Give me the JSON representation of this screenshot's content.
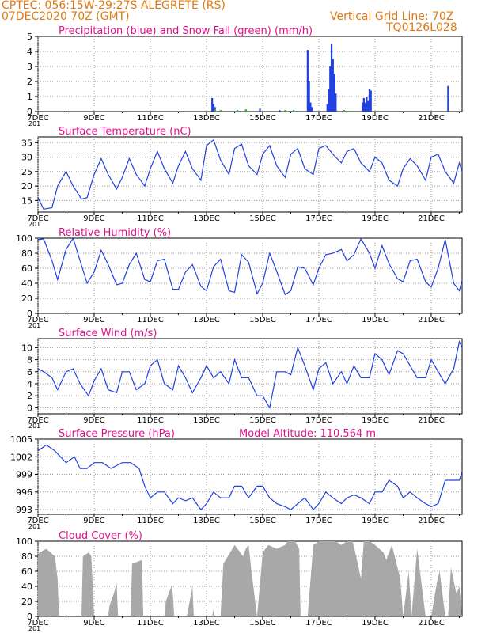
{
  "header": {
    "station": "CPTEC:   056:15W-29:27S   ALEGRETE (RS)",
    "run": "07DEC2020 70Z (GMT)",
    "grid_note": "Vertical Grid Line: 70Z",
    "code": "TQ0126L028"
  },
  "colors": {
    "header": "#e07a10",
    "title": "#e0108c",
    "line": "#2040e0",
    "snow": "#20b020",
    "cloud": "#a8a8a8"
  },
  "x_axis": {
    "tick_labels": [
      "7DEC",
      "9DEC",
      "11DEC",
      "13DEC",
      "15DEC",
      "17DEC",
      "19DEC",
      "21DEC"
    ],
    "tick_days": [
      7,
      9,
      11,
      13,
      15,
      17,
      19,
      21
    ],
    "xlim": [
      7,
      22.1
    ],
    "stub_label": "201"
  },
  "chart_data": [
    {
      "id": "precip",
      "type": "bar",
      "title": "Precipitation (blue) and Snow Fall (green) (mm/h)",
      "ylim": [
        0,
        5
      ],
      "yticks": [
        0,
        1,
        2,
        3,
        4,
        5
      ],
      "grid": true,
      "rain": [
        [
          13.2,
          0.9
        ],
        [
          13.25,
          0.5
        ],
        [
          13.3,
          0.3
        ],
        [
          14.9,
          0.2
        ],
        [
          15.6,
          0.1
        ],
        [
          16.6,
          4.1
        ],
        [
          16.65,
          2.0
        ],
        [
          16.7,
          0.6
        ],
        [
          16.75,
          0.3
        ],
        [
          17.3,
          0.5
        ],
        [
          17.35,
          1.5
        ],
        [
          17.4,
          3.0
        ],
        [
          17.45,
          4.5
        ],
        [
          17.5,
          3.5
        ],
        [
          17.55,
          2.5
        ],
        [
          17.6,
          1.2
        ],
        [
          18.55,
          0.6
        ],
        [
          18.6,
          0.9
        ],
        [
          18.65,
          0.6
        ],
        [
          18.7,
          1.0
        ],
        [
          18.75,
          0.7
        ],
        [
          18.8,
          1.5
        ],
        [
          18.85,
          1.4
        ],
        [
          21.6,
          1.7
        ]
      ],
      "snow": [
        [
          13.3,
          0.15
        ],
        [
          13.5,
          0.1
        ],
        [
          14.1,
          0.1
        ],
        [
          14.4,
          0.15
        ],
        [
          15.8,
          0.1
        ],
        [
          16.1,
          0.1
        ],
        [
          17.9,
          0.1
        ],
        [
          18.2,
          0.05
        ]
      ]
    },
    {
      "id": "temp",
      "type": "line",
      "title": "Surface Temperature (nC)",
      "ylim": [
        11,
        37
      ],
      "yticks": [
        15,
        20,
        25,
        30,
        35
      ],
      "grid": true,
      "x": [
        7,
        7.2,
        7.5,
        7.7,
        8,
        8.25,
        8.55,
        8.75,
        9,
        9.25,
        9.5,
        9.8,
        10,
        10.25,
        10.5,
        10.8,
        11,
        11.25,
        11.5,
        11.8,
        12,
        12.25,
        12.5,
        12.8,
        13,
        13.25,
        13.5,
        13.8,
        14,
        14.25,
        14.5,
        14.8,
        15,
        15.25,
        15.5,
        15.8,
        16,
        16.25,
        16.5,
        16.8,
        17,
        17.25,
        17.5,
        17.8,
        18,
        18.25,
        18.5,
        18.8,
        19,
        19.25,
        19.5,
        19.8,
        20,
        20.25,
        20.5,
        20.8,
        21,
        21.25,
        21.5,
        21.8,
        22,
        22.1
      ],
      "values": [
        16,
        12,
        12.5,
        20,
        25,
        20,
        15.5,
        16,
        24,
        29.5,
        24,
        19,
        23,
        29.5,
        24,
        20,
        26,
        32,
        26,
        21,
        27,
        32,
        26,
        22,
        34,
        36,
        29,
        24,
        33,
        34.5,
        27,
        24,
        31,
        34,
        27,
        23,
        31,
        33,
        26,
        24,
        33,
        34,
        31,
        28,
        32,
        33,
        28,
        25,
        30,
        28,
        22,
        20,
        26,
        29.5,
        27,
        22,
        30,
        31,
        25,
        21,
        28,
        25
      ]
    },
    {
      "id": "rh",
      "type": "line",
      "title": "Relative Humidity (%)",
      "ylim": [
        0,
        100
      ],
      "yticks": [
        0,
        20,
        40,
        60,
        80,
        100
      ],
      "grid": true,
      "x": [
        7,
        7.2,
        7.5,
        7.7,
        8,
        8.25,
        8.5,
        8.75,
        9,
        9.25,
        9.5,
        9.8,
        10,
        10.25,
        10.5,
        10.8,
        11,
        11.25,
        11.5,
        11.8,
        12,
        12.25,
        12.5,
        12.8,
        13,
        13.25,
        13.5,
        13.8,
        14,
        14.25,
        14.5,
        14.8,
        15,
        15.25,
        15.5,
        15.8,
        16,
        16.25,
        16.5,
        16.8,
        17,
        17.25,
        17.5,
        17.8,
        18,
        18.25,
        18.5,
        18.8,
        19,
        19.25,
        19.5,
        19.8,
        20,
        20.25,
        20.5,
        20.8,
        21,
        21.25,
        21.5,
        21.8,
        22,
        22.1
      ],
      "values": [
        98,
        99,
        70,
        45,
        85,
        100,
        70,
        40,
        55,
        84,
        65,
        38,
        40,
        65,
        80,
        45,
        42,
        70,
        72,
        32,
        32,
        55,
        65,
        36,
        30,
        62,
        72,
        30,
        28,
        78,
        68,
        26,
        40,
        80,
        56,
        25,
        30,
        62,
        60,
        38,
        60,
        78,
        80,
        85,
        70,
        78,
        99,
        80,
        60,
        90,
        66,
        46,
        42,
        70,
        72,
        42,
        35,
        60,
        98,
        40,
        30,
        44
      ]
    },
    {
      "id": "wind",
      "type": "line",
      "title": "Surface Wind (m/s)",
      "ylim": [
        -1,
        11.5
      ],
      "yticks": [
        0,
        2,
        4,
        6,
        8,
        10
      ],
      "grid": true,
      "x": [
        7,
        7.2,
        7.5,
        7.7,
        8,
        8.25,
        8.5,
        8.8,
        9,
        9.25,
        9.5,
        9.8,
        10,
        10.25,
        10.5,
        10.8,
        11,
        11.25,
        11.5,
        11.8,
        12,
        12.25,
        12.5,
        12.8,
        13,
        13.25,
        13.5,
        13.8,
        14,
        14.25,
        14.5,
        14.8,
        15,
        15.25,
        15.5,
        15.8,
        16,
        16.25,
        16.5,
        16.8,
        17,
        17.25,
        17.5,
        17.8,
        18,
        18.25,
        18.5,
        18.8,
        19,
        19.25,
        19.5,
        19.8,
        20,
        20.25,
        20.5,
        20.8,
        21,
        21.25,
        21.5,
        21.8,
        22,
        22.1
      ],
      "values": [
        6.5,
        6,
        5,
        3,
        6,
        6.5,
        4,
        2,
        4.5,
        6.5,
        3,
        2.5,
        6,
        6,
        3,
        4,
        7,
        8,
        4,
        3,
        7,
        5,
        2.5,
        5,
        7,
        5,
        6,
        4,
        8,
        5,
        5,
        2,
        2,
        0,
        6,
        6,
        5.5,
        10,
        7,
        3,
        6.5,
        7.5,
        4,
        6,
        4,
        7,
        5,
        5,
        9,
        8,
        5.5,
        9.5,
        9,
        7,
        5,
        5,
        8,
        6,
        4,
        6.5,
        11,
        10
      ]
    },
    {
      "id": "pressure",
      "type": "line",
      "title": "Surface Pressure (hPa)",
      "annotation": "Model Altitude: 110.564  m",
      "ylim": [
        992.2,
        1005
      ],
      "yticks": [
        993,
        996,
        999,
        1002,
        1005
      ],
      "grid": true,
      "x": [
        7,
        7.3,
        7.6,
        8,
        8.3,
        8.5,
        8.75,
        9,
        9.3,
        9.6,
        10,
        10.3,
        10.6,
        10.8,
        11,
        11.25,
        11.5,
        11.8,
        12,
        12.25,
        12.5,
        12.8,
        13,
        13.25,
        13.5,
        13.8,
        14,
        14.25,
        14.5,
        14.8,
        15,
        15.25,
        15.5,
        15.8,
        16,
        16.25,
        16.5,
        16.8,
        17,
        17.25,
        17.5,
        17.8,
        18,
        18.25,
        18.5,
        18.8,
        19,
        19.25,
        19.5,
        19.8,
        20,
        20.25,
        20.5,
        20.8,
        21,
        21.25,
        21.5,
        21.8,
        22,
        22.1
      ],
      "values": [
        1003,
        1004,
        1003,
        1001,
        1002,
        1000,
        1000,
        1001,
        1001,
        1000,
        1001,
        1001,
        1000,
        997,
        995,
        996,
        996,
        994,
        995,
        994.5,
        995,
        993,
        994,
        996,
        995,
        995,
        997,
        997,
        995,
        997,
        997,
        995,
        994,
        993.5,
        993,
        994,
        995,
        993,
        994,
        996,
        995,
        994,
        995,
        995.5,
        995,
        994,
        996,
        996,
        998,
        997,
        995,
        996,
        995,
        994,
        993.5,
        994,
        998,
        998,
        998,
        999.5
      ]
    },
    {
      "id": "cloud",
      "type": "area",
      "title": "Cloud Cover (%)",
      "ylim": [
        0,
        100
      ],
      "yticks": [
        0,
        20,
        40,
        60,
        80,
        100
      ],
      "grid": true,
      "x": [
        7,
        7.05,
        7.3,
        7.6,
        7.7,
        7.75,
        8,
        8.55,
        8.6,
        8.8,
        8.9,
        9,
        9.5,
        9.55,
        9.7,
        9.8,
        9.85,
        10,
        10.3,
        10.35,
        10.7,
        10.75,
        11,
        11.5,
        11.55,
        11.75,
        11.8,
        11.85,
        12,
        12.3,
        12.35,
        12.5,
        12.55,
        12.8,
        13,
        13.2,
        13.25,
        13.3,
        13.5,
        13.6,
        14.0,
        14.3,
        14.4,
        14.5,
        14.6,
        14.8,
        15,
        15.2,
        15.5,
        15.8,
        15.9,
        16,
        16.15,
        16.3,
        16.35,
        16.6,
        16.8,
        17.0,
        17.2,
        17.4,
        17.6,
        17.8,
        18.0,
        18.2,
        18.3,
        18.5,
        18.6,
        18.8,
        19.0,
        19.3,
        19.4,
        19.6,
        19.7,
        19.9,
        20.0,
        20.2,
        20.3,
        20.5,
        20.7,
        20.8,
        21.0,
        21.2,
        21.3,
        21.5,
        21.6,
        21.7,
        21.9,
        22,
        22.1
      ],
      "values": [
        80,
        85,
        90,
        80,
        50,
        0,
        0,
        0,
        80,
        85,
        80,
        0,
        0,
        15,
        30,
        45,
        0,
        0,
        0,
        70,
        75,
        0,
        0,
        0,
        20,
        40,
        30,
        0,
        0,
        0,
        10,
        40,
        0,
        0,
        0,
        0,
        10,
        0,
        0,
        70,
        95,
        80,
        90,
        95,
        60,
        0,
        85,
        95,
        90,
        95,
        100,
        100,
        100,
        90,
        0,
        0,
        95,
        100,
        100,
        100,
        100,
        95,
        100,
        100,
        85,
        50,
        100,
        100,
        95,
        85,
        75,
        95,
        80,
        50,
        0,
        60,
        0,
        90,
        30,
        0,
        0,
        45,
        60,
        0,
        0,
        65,
        30,
        40,
        0
      ]
    }
  ]
}
